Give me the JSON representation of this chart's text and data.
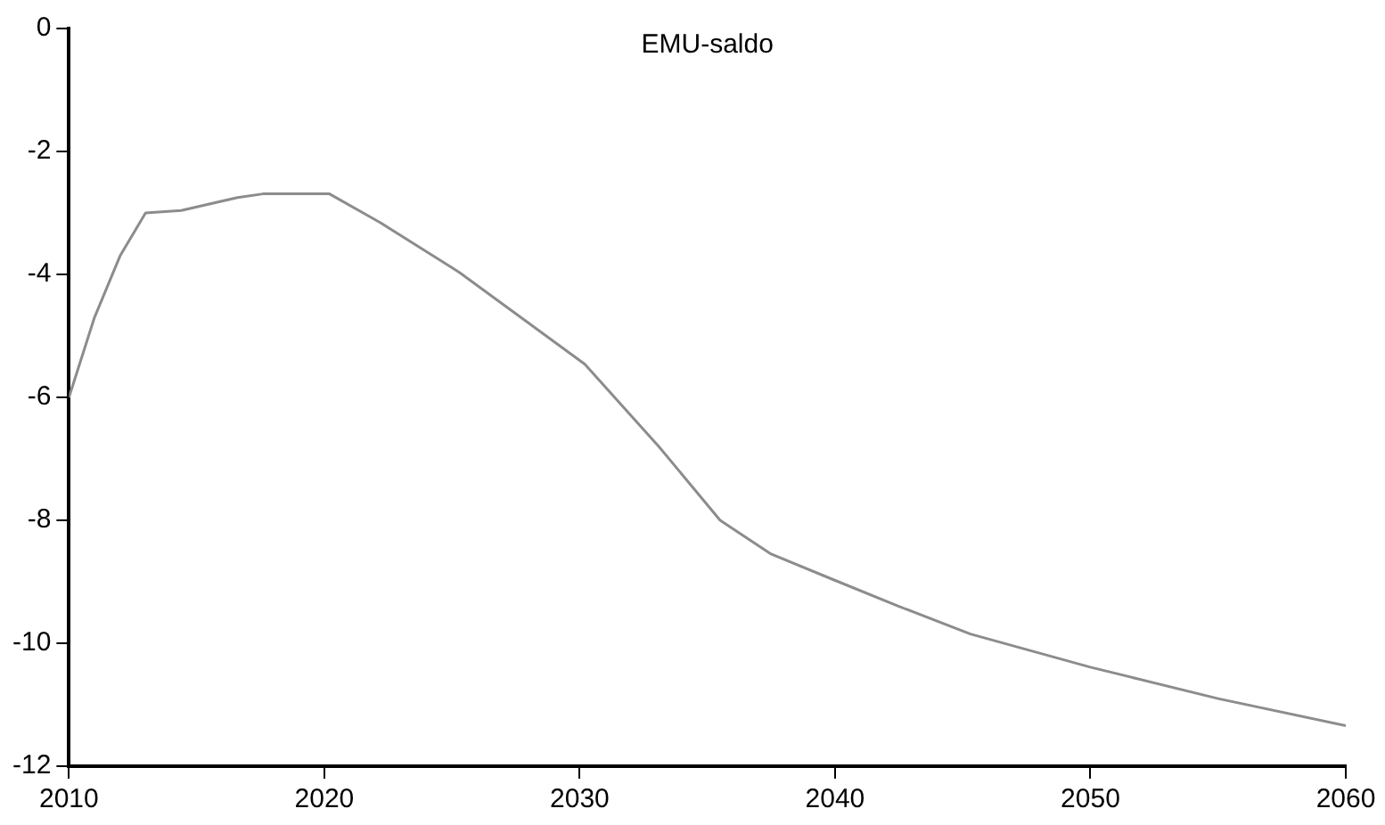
{
  "chart_data": {
    "type": "line",
    "title": "EMU-saldo",
    "series": [
      {
        "color": "#8c8c8c",
        "x": [
          2010,
          2011,
          2012,
          2013,
          2014.4,
          2016.6,
          2017.6,
          2020.2,
          2022.2,
          2025.3,
          2030.2,
          2033.1,
          2035.5,
          2037.5,
          2039.9,
          2042.5,
          2045.3,
          2050,
          2055,
          2060
        ],
        "values": [
          -6.0,
          -4.7,
          -3.7,
          -3.0,
          -2.96,
          -2.75,
          -2.69,
          -2.69,
          -3.16,
          -3.97,
          -5.46,
          -6.8,
          -8.0,
          -8.55,
          -8.96,
          -9.4,
          -9.85,
          -10.39,
          -10.9,
          -11.34
        ]
      }
    ],
    "xlim": [
      2010,
      2060
    ],
    "xticks": [
      2010,
      2020,
      2030,
      2040,
      2050,
      2060
    ],
    "ylim": [
      -12,
      0
    ],
    "yticks": [
      -12,
      -10,
      -8,
      -6,
      -4,
      -2,
      0
    ],
    "grid": false,
    "legend": false,
    "marker": "none",
    "line_style": "solid"
  }
}
